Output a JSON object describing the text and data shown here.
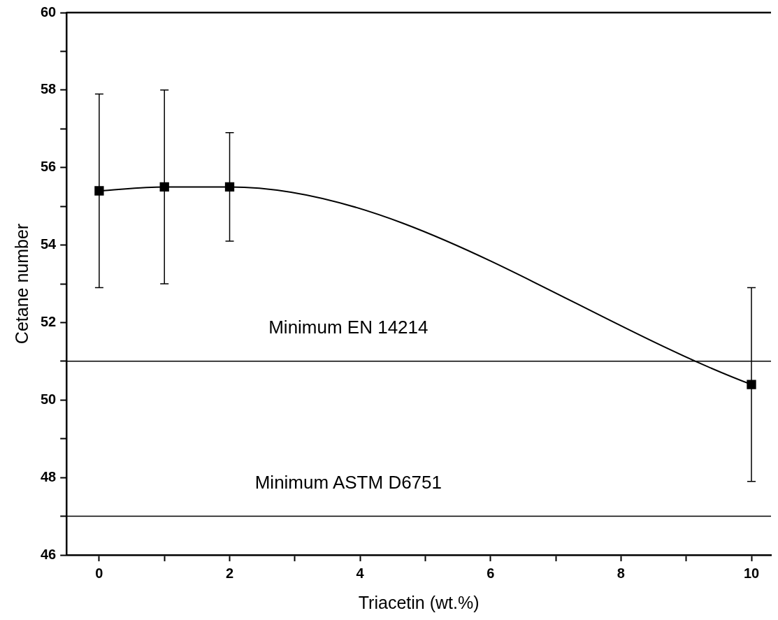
{
  "chart_data": {
    "type": "line",
    "xlabel": "Triacetin (wt.%)",
    "ylabel": "Cetane number",
    "x": [
      0,
      1,
      2,
      10
    ],
    "series": [
      {
        "color": "#000000",
        "values": [
          55.4,
          55.5,
          55.5,
          50.4
        ],
        "errors": [
          2.5,
          2.5,
          1.4,
          2.5
        ]
      }
    ],
    "xlim": [
      -0.5,
      10.3
    ],
    "ylim": [
      46,
      60
    ],
    "xticks": [
      0,
      {
        "value": 1,
        "label": null
      },
      2,
      {
        "value": 3,
        "label": null
      },
      4,
      {
        "value": 5,
        "label": null
      },
      6,
      {
        "value": 7,
        "label": null
      },
      8,
      {
        "value": 9,
        "label": null
      },
      10
    ],
    "yticks": [
      46,
      {
        "value": 47,
        "label": null
      },
      48,
      {
        "value": 49,
        "label": null
      },
      50,
      {
        "value": 51,
        "label": null
      },
      52,
      {
        "value": 53,
        "label": null
      },
      54,
      {
        "value": 55,
        "label": null
      },
      56,
      {
        "value": 57,
        "label": null
      },
      58,
      {
        "value": 59,
        "label": null
      },
      60
    ],
    "ref_lines": [
      {
        "axis": "y",
        "value": 51,
        "label": "Minimum EN 14214",
        "color": "#000000"
      },
      {
        "axis": "y",
        "value": 47,
        "label": "Minimum ASTM D6751",
        "color": "#000000"
      }
    ],
    "marker": "square",
    "grid": false,
    "legend": false
  }
}
